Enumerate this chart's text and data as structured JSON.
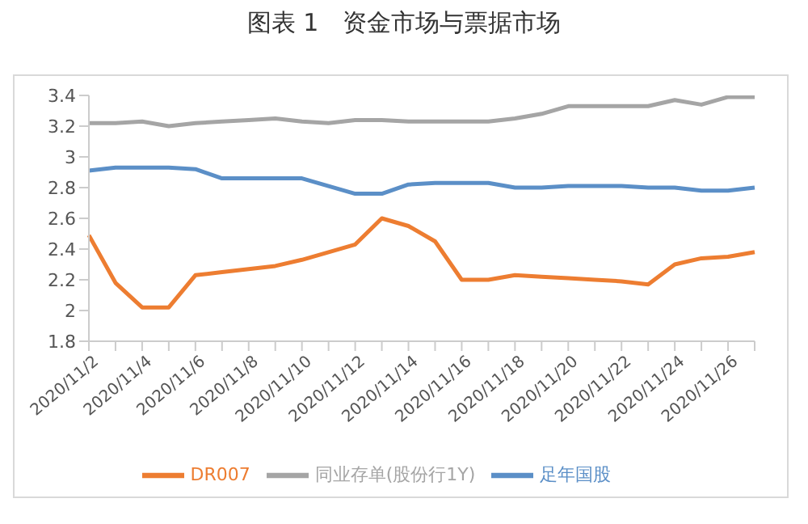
{
  "chart_data": {
    "type": "line",
    "title": "图表 1　资金市场与票据市场",
    "categories": [
      "2020/11/2",
      null,
      "2020/11/4",
      null,
      "2020/11/6",
      null,
      "2020/11/8",
      null,
      "2020/11/10",
      null,
      "2020/11/12",
      null,
      "2020/11/14",
      null,
      "2020/11/16",
      null,
      "2020/11/18",
      null,
      "2020/11/20",
      null,
      "2020/11/22",
      null,
      "2020/11/24",
      null,
      "2020/11/26",
      null
    ],
    "series": [
      {
        "name": "足年国股",
        "color": "#5b8fc7",
        "values": [
          2.91,
          2.93,
          2.93,
          2.93,
          2.92,
          2.86,
          2.86,
          2.86,
          2.86,
          2.81,
          2.76,
          2.76,
          2.82,
          2.83,
          2.83,
          2.83,
          2.8,
          2.8,
          2.81,
          2.81,
          2.81,
          2.8,
          2.8,
          2.78,
          2.78,
          2.8
        ]
      },
      {
        "name": "DR007",
        "color": "#ed7d31",
        "values": [
          2.49,
          2.18,
          2.02,
          2.02,
          2.23,
          2.25,
          2.27,
          2.29,
          2.33,
          2.38,
          2.43,
          2.6,
          2.55,
          2.45,
          2.2,
          2.2,
          2.23,
          2.22,
          2.21,
          2.2,
          2.19,
          2.17,
          2.3,
          2.34,
          2.35,
          2.38
        ]
      },
      {
        "name": "同业存单(股份行1Y)",
        "color": "#a5a5a5",
        "values": [
          3.22,
          3.22,
          3.23,
          3.2,
          3.22,
          3.23,
          3.24,
          3.25,
          3.23,
          3.22,
          3.24,
          3.24,
          3.23,
          3.23,
          3.23,
          3.23,
          3.25,
          3.28,
          3.33,
          3.33,
          3.33,
          3.33,
          3.37,
          3.34,
          3.39,
          3.39
        ]
      }
    ],
    "ylim": [
      1.8,
      3.4
    ],
    "yticks": [
      1.8,
      2,
      2.2,
      2.4,
      2.6,
      2.8,
      3,
      3.2,
      3.4
    ],
    "grid": false,
    "legend": "bottom",
    "marker": "none",
    "line_style": "solid"
  }
}
